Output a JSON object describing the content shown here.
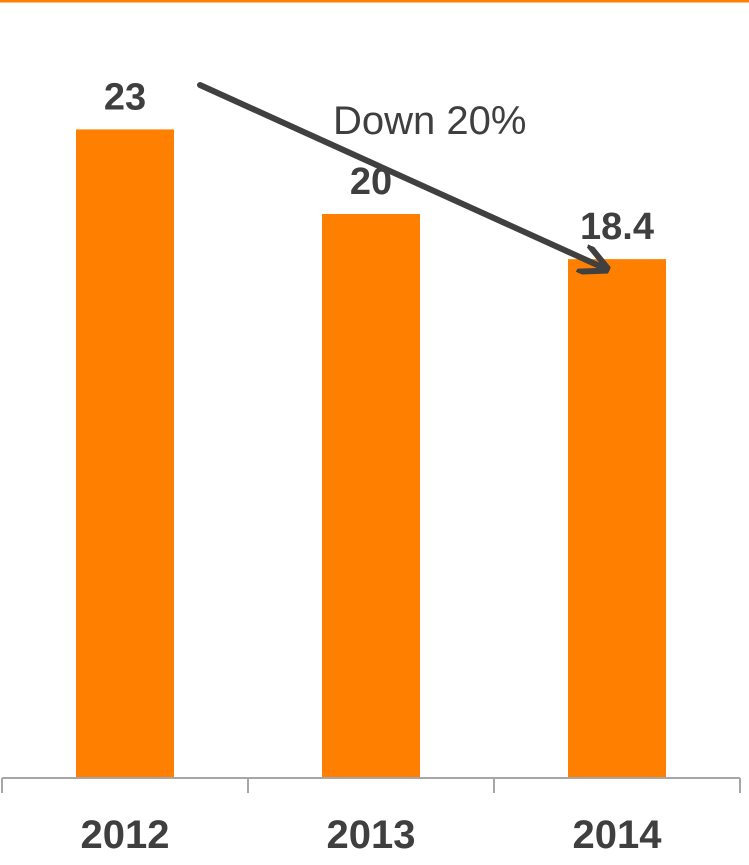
{
  "chart_data": {
    "type": "bar",
    "categories": [
      "2012",
      "2013",
      "2014"
    ],
    "values": [
      23,
      20,
      18.4
    ],
    "value_labels": [
      "23",
      "20",
      "18.4"
    ],
    "annotation": "Down 20%",
    "grid": false,
    "legend": "none",
    "ylim": [
      0,
      25
    ]
  },
  "colors": {
    "bar": "#ff8000",
    "top_rule": "#ff8000",
    "text": "#3f3f3f",
    "arrow": "#404040",
    "axis": "#a6a6a6"
  }
}
